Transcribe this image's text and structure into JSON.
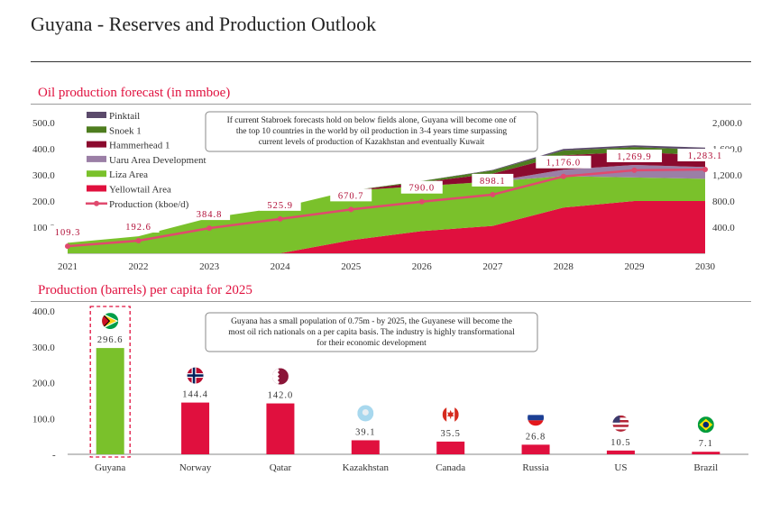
{
  "page": {
    "title": "Guyana - Reserves and Production Outlook"
  },
  "colors": {
    "accent": "#e0103e",
    "pinktail": "#5b4a6b",
    "snoek": "#4e7d1f",
    "hammerhead": "#8b0a2e",
    "uaru": "#9b7fa6",
    "liza": "#7ac12b",
    "yellowtail": "#e0103e",
    "production_line": "#e04a6e",
    "bar_guyana": "#7ac12b",
    "bar_other": "#e0103e"
  },
  "chart_data": [
    {
      "type": "area",
      "title": "Oil production forecast (in mmboe)",
      "x": [
        "2021",
        "2022",
        "2023",
        "2024",
        "2025",
        "2026",
        "2027",
        "2028",
        "2029",
        "2030"
      ],
      "ylim": [
        0,
        500
      ],
      "y_ticks": [
        "500.0",
        "400.0",
        "300.0",
        "200.0",
        "100.0"
      ],
      "y2lim": [
        0,
        2000
      ],
      "y2_ticks": [
        "2,000.0",
        "1,600.0",
        "1,200.0",
        "800.0",
        "400.0"
      ],
      "stack_order": [
        "Yellowtail Area",
        "Liza Area",
        "Uaru Area Development",
        "Hammerhead 1",
        "Snoek 1",
        "Pinktail"
      ],
      "series": [
        {
          "name": "Yellowtail Area",
          "color_key": "yellowtail",
          "values": [
            0,
            0,
            0,
            0,
            50,
            85,
            105,
            175,
            200,
            200
          ]
        },
        {
          "name": "Liza Area",
          "color_key": "liza",
          "values": [
            40,
            65,
            135,
            175,
            190,
            172,
            170,
            120,
            90,
            85
          ]
        },
        {
          "name": "Uaru Area Development",
          "color_key": "uaru",
          "values": [
            0,
            0,
            0,
            0,
            0,
            0,
            0,
            25,
            48,
            45
          ]
        },
        {
          "name": "Hammerhead 1",
          "color_key": "hammerhead",
          "values": [
            0,
            0,
            0,
            0,
            0,
            15,
            30,
            55,
            50,
            45
          ]
        },
        {
          "name": "Snoek 1",
          "color_key": "snoek",
          "values": [
            0,
            0,
            0,
            0,
            0,
            5,
            12,
            18,
            18,
            22
          ]
        },
        {
          "name": "Pinktail",
          "color_key": "pinktail",
          "values": [
            0,
            0,
            0,
            0,
            0,
            0,
            2,
            6,
            7,
            7
          ]
        }
      ],
      "line_series": {
        "name": "Production (kboe/d)",
        "axis": "secondary",
        "values": [
          109.3,
          192.6,
          384.8,
          525.9,
          670.7,
          790.0,
          898.1,
          1176.0,
          1269.9,
          1283.1
        ],
        "labels": [
          "109.3",
          "192.6",
          "384.8",
          "525.9",
          "670.7",
          "790.0",
          "898.1",
          "1,176.0",
          "1,269.9",
          "1,283.1"
        ]
      },
      "legend": [
        "Pinktail",
        "Snoek 1",
        "Hammerhead 1",
        "Uaru Area Development",
        "Liza Area",
        "Yellowtail Area",
        "Production (kboe/d)"
      ],
      "legend_position": "top-left",
      "annotation": [
        "If current Stabroek forecasts hold on below fields alone, Guyana will become one of",
        "the top 10 countries in the world by oil production in 3-4 years time surpassing",
        "current levels of production of Kazakhstan and eventually Kuwait"
      ]
    },
    {
      "type": "bar",
      "title": "Production (barrels) per capita for 2025",
      "categories": [
        "Guyana",
        "Norway",
        "Qatar",
        "Kazakhstan",
        "Canada",
        "Russia",
        "US",
        "Brazil"
      ],
      "values": [
        296.6,
        144.4,
        142.0,
        39.1,
        35.5,
        26.8,
        10.5,
        7.1
      ],
      "value_labels": [
        "296.6",
        "144.4",
        "142.0",
        "39.1",
        "35.5",
        "26.8",
        "10.5",
        "7.1"
      ],
      "ylim": [
        0,
        400
      ],
      "y_ticks": [
        "400.0",
        "300.0",
        "200.0",
        "100.0",
        "-"
      ],
      "flags": [
        "guyana-flag-icon",
        "norway-flag-icon",
        "qatar-flag-icon",
        "kazakhstan-flag-icon",
        "canada-flag-icon",
        "russia-flag-icon",
        "us-flag-icon",
        "brazil-flag-icon"
      ],
      "highlight": "Guyana",
      "annotation": [
        "Guyana has a small population of 0.75m - by 2025, the Guyanese will become the",
        "most oil rich nationals on a per capita basis. The industry is highly transformational",
        "for their economic development"
      ]
    }
  ]
}
